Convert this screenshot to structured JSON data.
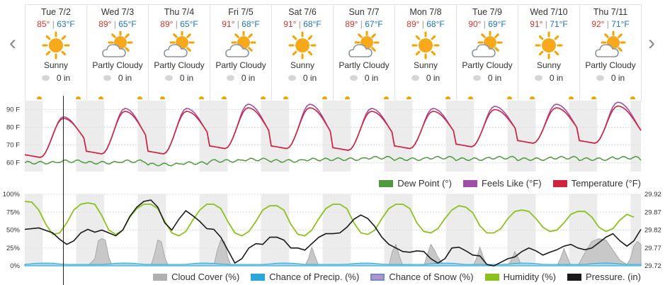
{
  "nav": {
    "prev": "‹",
    "next": "›"
  },
  "days": [
    {
      "label": "Tue 7/2",
      "hi": "85°",
      "lo": "63°F",
      "cond": "Sunny",
      "icon": "sun-icon",
      "precip": "0 in"
    },
    {
      "label": "Wed 7/3",
      "hi": "89°",
      "lo": "65°F",
      "cond": "Partly Cloudy",
      "icon": "partly-cloudy-icon",
      "precip": "0 in"
    },
    {
      "label": "Thu 7/4",
      "hi": "89°",
      "lo": "65°F",
      "cond": "Partly Cloudy",
      "icon": "partly-cloudy-icon",
      "precip": "0 in"
    },
    {
      "label": "Fri 7/5",
      "hi": "91°",
      "lo": "68°F",
      "cond": "Partly Cloudy",
      "icon": "partly-cloudy-icon",
      "precip": "0 in"
    },
    {
      "label": "Sat 7/6",
      "hi": "91°",
      "lo": "68°F",
      "cond": "Sunny",
      "icon": "sun-icon",
      "precip": "0 in"
    },
    {
      "label": "Sun 7/7",
      "hi": "89°",
      "lo": "67°F",
      "cond": "Partly Cloudy",
      "icon": "partly-cloudy-icon",
      "precip": "0 in"
    },
    {
      "label": "Mon 7/8",
      "hi": "89°",
      "lo": "68°F",
      "cond": "Sunny",
      "icon": "sun-icon",
      "precip": "0 in"
    },
    {
      "label": "Tue 7/9",
      "hi": "90°",
      "lo": "69°F",
      "cond": "Partly Cloudy",
      "icon": "partly-cloudy-icon",
      "precip": "0 in"
    },
    {
      "label": "Wed 7/10",
      "hi": "91°",
      "lo": "71°F",
      "cond": "Sunny",
      "icon": "sun-icon",
      "precip": "0 in"
    },
    {
      "label": "Thu 7/11",
      "hi": "92°",
      "lo": "71°F",
      "cond": "Partly Cloudy",
      "icon": "partly-cloudy-icon",
      "precip": "0 in"
    }
  ],
  "colors": {
    "hi": "#d9342b",
    "lo": "#1e73be",
    "temperature": "#d0243c",
    "feels_like": "#a04fa8",
    "dew_point": "#4f9a3f",
    "cloud_cover": "#b0b0b0",
    "precip_chance": "#2aa6d8",
    "snow_chance": "#9b7fc0",
    "humidity": "#8cc21e",
    "pressure": "#1a1a1a",
    "night_band": "#ececec"
  },
  "chart_data": [
    {
      "type": "line",
      "ylim": [
        55,
        95
      ],
      "yticks": [
        "90 F",
        "80 F",
        "70 F",
        "60 F"
      ],
      "ytick_values": [
        90,
        80,
        70,
        60
      ],
      "daily_max": [
        85,
        89,
        89,
        91,
        91,
        89,
        89,
        90,
        91,
        92
      ],
      "daily_min": [
        63,
        65,
        65,
        68,
        68,
        67,
        68,
        69,
        71,
        71
      ],
      "series": [
        {
          "name": "Dew Point (°)",
          "key": "dew_point"
        },
        {
          "name": "Feels Like (°F)",
          "key": "feels_like"
        },
        {
          "name": "Temperature (°F)",
          "key": "temperature"
        }
      ],
      "dew_point_daily": [
        60,
        60,
        59,
        61,
        61,
        62,
        62,
        62,
        62,
        62
      ]
    },
    {
      "type": "line",
      "yticks_left": [
        "100%",
        "75%",
        "50%",
        "25%",
        "0%"
      ],
      "ytick_left_values": [
        100,
        75,
        50,
        25,
        0
      ],
      "yticks_right": [
        "29.92",
        "29.87",
        "29.82",
        "29.77",
        "29.72"
      ],
      "ytick_right_values": [
        29.92,
        29.87,
        29.82,
        29.77,
        29.72
      ],
      "series": [
        {
          "name": "Cloud Cover (%)",
          "key": "cloud_cover"
        },
        {
          "name": "Chance of Precip. (%)",
          "key": "precip_chance"
        },
        {
          "name": "Chance of Snow (%)",
          "key": "snow_chance"
        },
        {
          "name": "Humidity (%)",
          "key": "humidity"
        },
        {
          "name": "Pressure. (in)",
          "key": "pressure"
        }
      ],
      "humidity": [
        [
          0,
          90
        ],
        [
          1,
          89
        ],
        [
          2,
          78
        ],
        [
          3,
          58
        ],
        [
          4,
          44
        ],
        [
          5,
          46
        ],
        [
          6,
          60
        ],
        [
          7,
          78
        ],
        [
          8,
          86
        ],
        [
          9,
          88
        ],
        [
          10,
          86
        ],
        [
          11,
          70
        ],
        [
          12,
          50
        ],
        [
          13,
          44
        ],
        [
          14,
          50
        ],
        [
          15,
          68
        ],
        [
          16,
          80
        ],
        [
          17,
          86
        ],
        [
          18,
          86
        ],
        [
          19,
          80
        ],
        [
          20,
          62
        ],
        [
          21,
          46
        ],
        [
          22,
          42
        ],
        [
          23,
          48
        ],
        [
          24,
          64
        ],
        [
          25,
          78
        ],
        [
          26,
          86
        ],
        [
          27,
          86
        ],
        [
          28,
          80
        ],
        [
          29,
          62
        ],
        [
          30,
          46
        ],
        [
          31,
          42
        ],
        [
          32,
          48
        ],
        [
          33,
          62
        ],
        [
          34,
          78
        ],
        [
          35,
          84
        ],
        [
          36,
          84
        ],
        [
          37,
          78
        ],
        [
          38,
          58
        ],
        [
          39,
          44
        ],
        [
          40,
          42
        ],
        [
          41,
          50
        ],
        [
          42,
          66
        ],
        [
          43,
          80
        ],
        [
          44,
          86
        ],
        [
          45,
          86
        ],
        [
          46,
          80
        ],
        [
          47,
          60
        ],
        [
          48,
          46
        ],
        [
          49,
          44
        ],
        [
          50,
          50
        ],
        [
          51,
          66
        ],
        [
          52,
          80
        ],
        [
          53,
          86
        ],
        [
          54,
          86
        ],
        [
          55,
          80
        ],
        [
          56,
          60
        ],
        [
          57,
          48
        ],
        [
          58,
          46
        ],
        [
          59,
          52
        ],
        [
          60,
          66
        ],
        [
          61,
          78
        ],
        [
          62,
          84
        ],
        [
          63,
          82
        ],
        [
          64,
          74
        ],
        [
          65,
          56
        ],
        [
          66,
          46
        ],
        [
          67,
          46
        ],
        [
          68,
          52
        ],
        [
          69,
          66
        ],
        [
          70,
          76
        ],
        [
          71,
          78
        ],
        [
          72,
          76
        ],
        [
          73,
          66
        ],
        [
          74,
          54
        ],
        [
          75,
          48
        ],
        [
          76,
          50
        ],
        [
          77,
          60
        ],
        [
          78,
          72
        ],
        [
          79,
          76
        ],
        [
          80,
          76
        ],
        [
          81,
          68
        ],
        [
          82,
          54
        ],
        [
          83,
          48
        ],
        [
          84,
          52
        ],
        [
          85,
          64
        ],
        [
          86,
          72
        ],
        [
          87,
          68
        ]
      ],
      "pressure_in": [
        [
          0,
          29.822
        ],
        [
          2,
          29.826
        ],
        [
          4,
          29.812
        ],
        [
          5,
          29.794
        ],
        [
          6,
          29.78
        ],
        [
          7,
          29.79
        ],
        [
          8,
          29.812
        ],
        [
          9,
          29.822
        ],
        [
          10,
          29.814
        ],
        [
          11,
          29.82
        ],
        [
          12,
          29.812
        ],
        [
          13,
          29.804
        ],
        [
          14,
          29.82
        ],
        [
          15,
          29.858
        ],
        [
          16,
          29.884
        ],
        [
          17,
          29.9
        ],
        [
          18,
          29.904
        ],
        [
          19,
          29.884
        ],
        [
          20,
          29.84
        ],
        [
          21,
          29.82
        ],
        [
          22,
          29.85
        ],
        [
          23,
          29.874
        ],
        [
          24,
          29.86
        ],
        [
          25,
          29.844
        ],
        [
          26,
          29.824
        ],
        [
          27,
          29.822
        ],
        [
          28,
          29.8
        ],
        [
          29,
          29.764
        ],
        [
          30,
          29.728
        ],
        [
          31,
          29.74
        ],
        [
          32,
          29.77
        ],
        [
          33,
          29.782
        ],
        [
          34,
          29.78
        ],
        [
          35,
          29.8
        ],
        [
          36,
          29.8
        ],
        [
          37,
          29.792
        ],
        [
          38,
          29.77
        ],
        [
          39,
          29.77
        ],
        [
          40,
          29.764
        ],
        [
          41,
          29.782
        ],
        [
          42,
          29.8
        ],
        [
          43,
          29.81
        ],
        [
          44,
          29.81
        ],
        [
          45,
          29.812
        ],
        [
          46,
          29.828
        ],
        [
          47,
          29.85
        ],
        [
          48,
          29.862
        ],
        [
          49,
          29.852
        ],
        [
          50,
          29.83
        ],
        [
          51,
          29.8
        ],
        [
          52,
          29.78
        ],
        [
          53,
          29.77
        ],
        [
          54,
          29.76
        ],
        [
          55,
          29.758
        ],
        [
          56,
          29.762
        ],
        [
          57,
          29.76
        ],
        [
          58,
          29.74
        ],
        [
          59,
          29.728
        ],
        [
          60,
          29.74
        ],
        [
          61,
          29.77
        ],
        [
          62,
          29.772
        ],
        [
          63,
          29.762
        ],
        [
          64,
          29.75
        ],
        [
          65,
          29.748
        ],
        [
          66,
          29.724
        ],
        [
          67,
          29.72
        ],
        [
          68,
          29.73
        ],
        [
          69,
          29.74
        ],
        [
          70,
          29.745
        ],
        [
          71,
          29.76
        ],
        [
          72,
          29.77
        ],
        [
          73,
          29.762
        ],
        [
          74,
          29.75
        ],
        [
          75,
          29.758
        ],
        [
          76,
          29.765
        ],
        [
          77,
          29.775
        ],
        [
          78,
          29.78
        ],
        [
          79,
          29.77
        ],
        [
          80,
          29.765
        ],
        [
          81,
          29.77
        ],
        [
          82,
          29.785
        ],
        [
          83,
          29.8
        ],
        [
          84,
          29.81
        ],
        [
          85,
          29.79
        ],
        [
          86,
          29.775
        ],
        [
          87,
          29.79
        ],
        [
          88,
          29.822
        ]
      ],
      "cloud_cover": [
        [
          0,
          0
        ],
        [
          9,
          0
        ],
        [
          10,
          10
        ],
        [
          10.5,
          35
        ],
        [
          11,
          38
        ],
        [
          11.5,
          36
        ],
        [
          12,
          12
        ],
        [
          12.5,
          0
        ],
        [
          18,
          0
        ],
        [
          18.5,
          15
        ],
        [
          19,
          36
        ],
        [
          19.5,
          34
        ],
        [
          20,
          12
        ],
        [
          20.5,
          0
        ],
        [
          27,
          0
        ],
        [
          27.5,
          22
        ],
        [
          28,
          36
        ],
        [
          28.5,
          34
        ],
        [
          29,
          12
        ],
        [
          29.5,
          0
        ],
        [
          40,
          0
        ],
        [
          40.5,
          10
        ],
        [
          41,
          26
        ],
        [
          41.5,
          12
        ],
        [
          42,
          0
        ],
        [
          52,
          0
        ],
        [
          52.5,
          20
        ],
        [
          53,
          30
        ],
        [
          53.5,
          14
        ],
        [
          54,
          0
        ],
        [
          57,
          0
        ],
        [
          57.5,
          16
        ],
        [
          58,
          30
        ],
        [
          58.5,
          22
        ],
        [
          59,
          12
        ],
        [
          60,
          0
        ],
        [
          64,
          0
        ],
        [
          64.5,
          10
        ],
        [
          65,
          26
        ],
        [
          65.5,
          12
        ],
        [
          66,
          0
        ],
        [
          69,
          0
        ],
        [
          69.5,
          8
        ],
        [
          70,
          20
        ],
        [
          70.5,
          10
        ],
        [
          71,
          0
        ],
        [
          76,
          0
        ],
        [
          76.5,
          10
        ],
        [
          77,
          24
        ],
        [
          77.5,
          12
        ],
        [
          78,
          0
        ],
        [
          79,
          0
        ],
        [
          80,
          18
        ],
        [
          81,
          34
        ],
        [
          82,
          38
        ],
        [
          83,
          36
        ],
        [
          84,
          22
        ],
        [
          85,
          8
        ],
        [
          86,
          2
        ],
        [
          86.5,
          10
        ],
        [
          87,
          28
        ],
        [
          87.5,
          34
        ],
        [
          88,
          30
        ]
      ]
    }
  ],
  "legend": {
    "temp": [
      "Dew Point (°)",
      "Feels Like (°F)",
      "Temperature (°F)"
    ],
    "humid": [
      "Cloud Cover (%)",
      "Chance of Precip. (%)",
      "Chance of Snow (%)",
      "Humidity (%)",
      "Pressure. (in)"
    ]
  }
}
